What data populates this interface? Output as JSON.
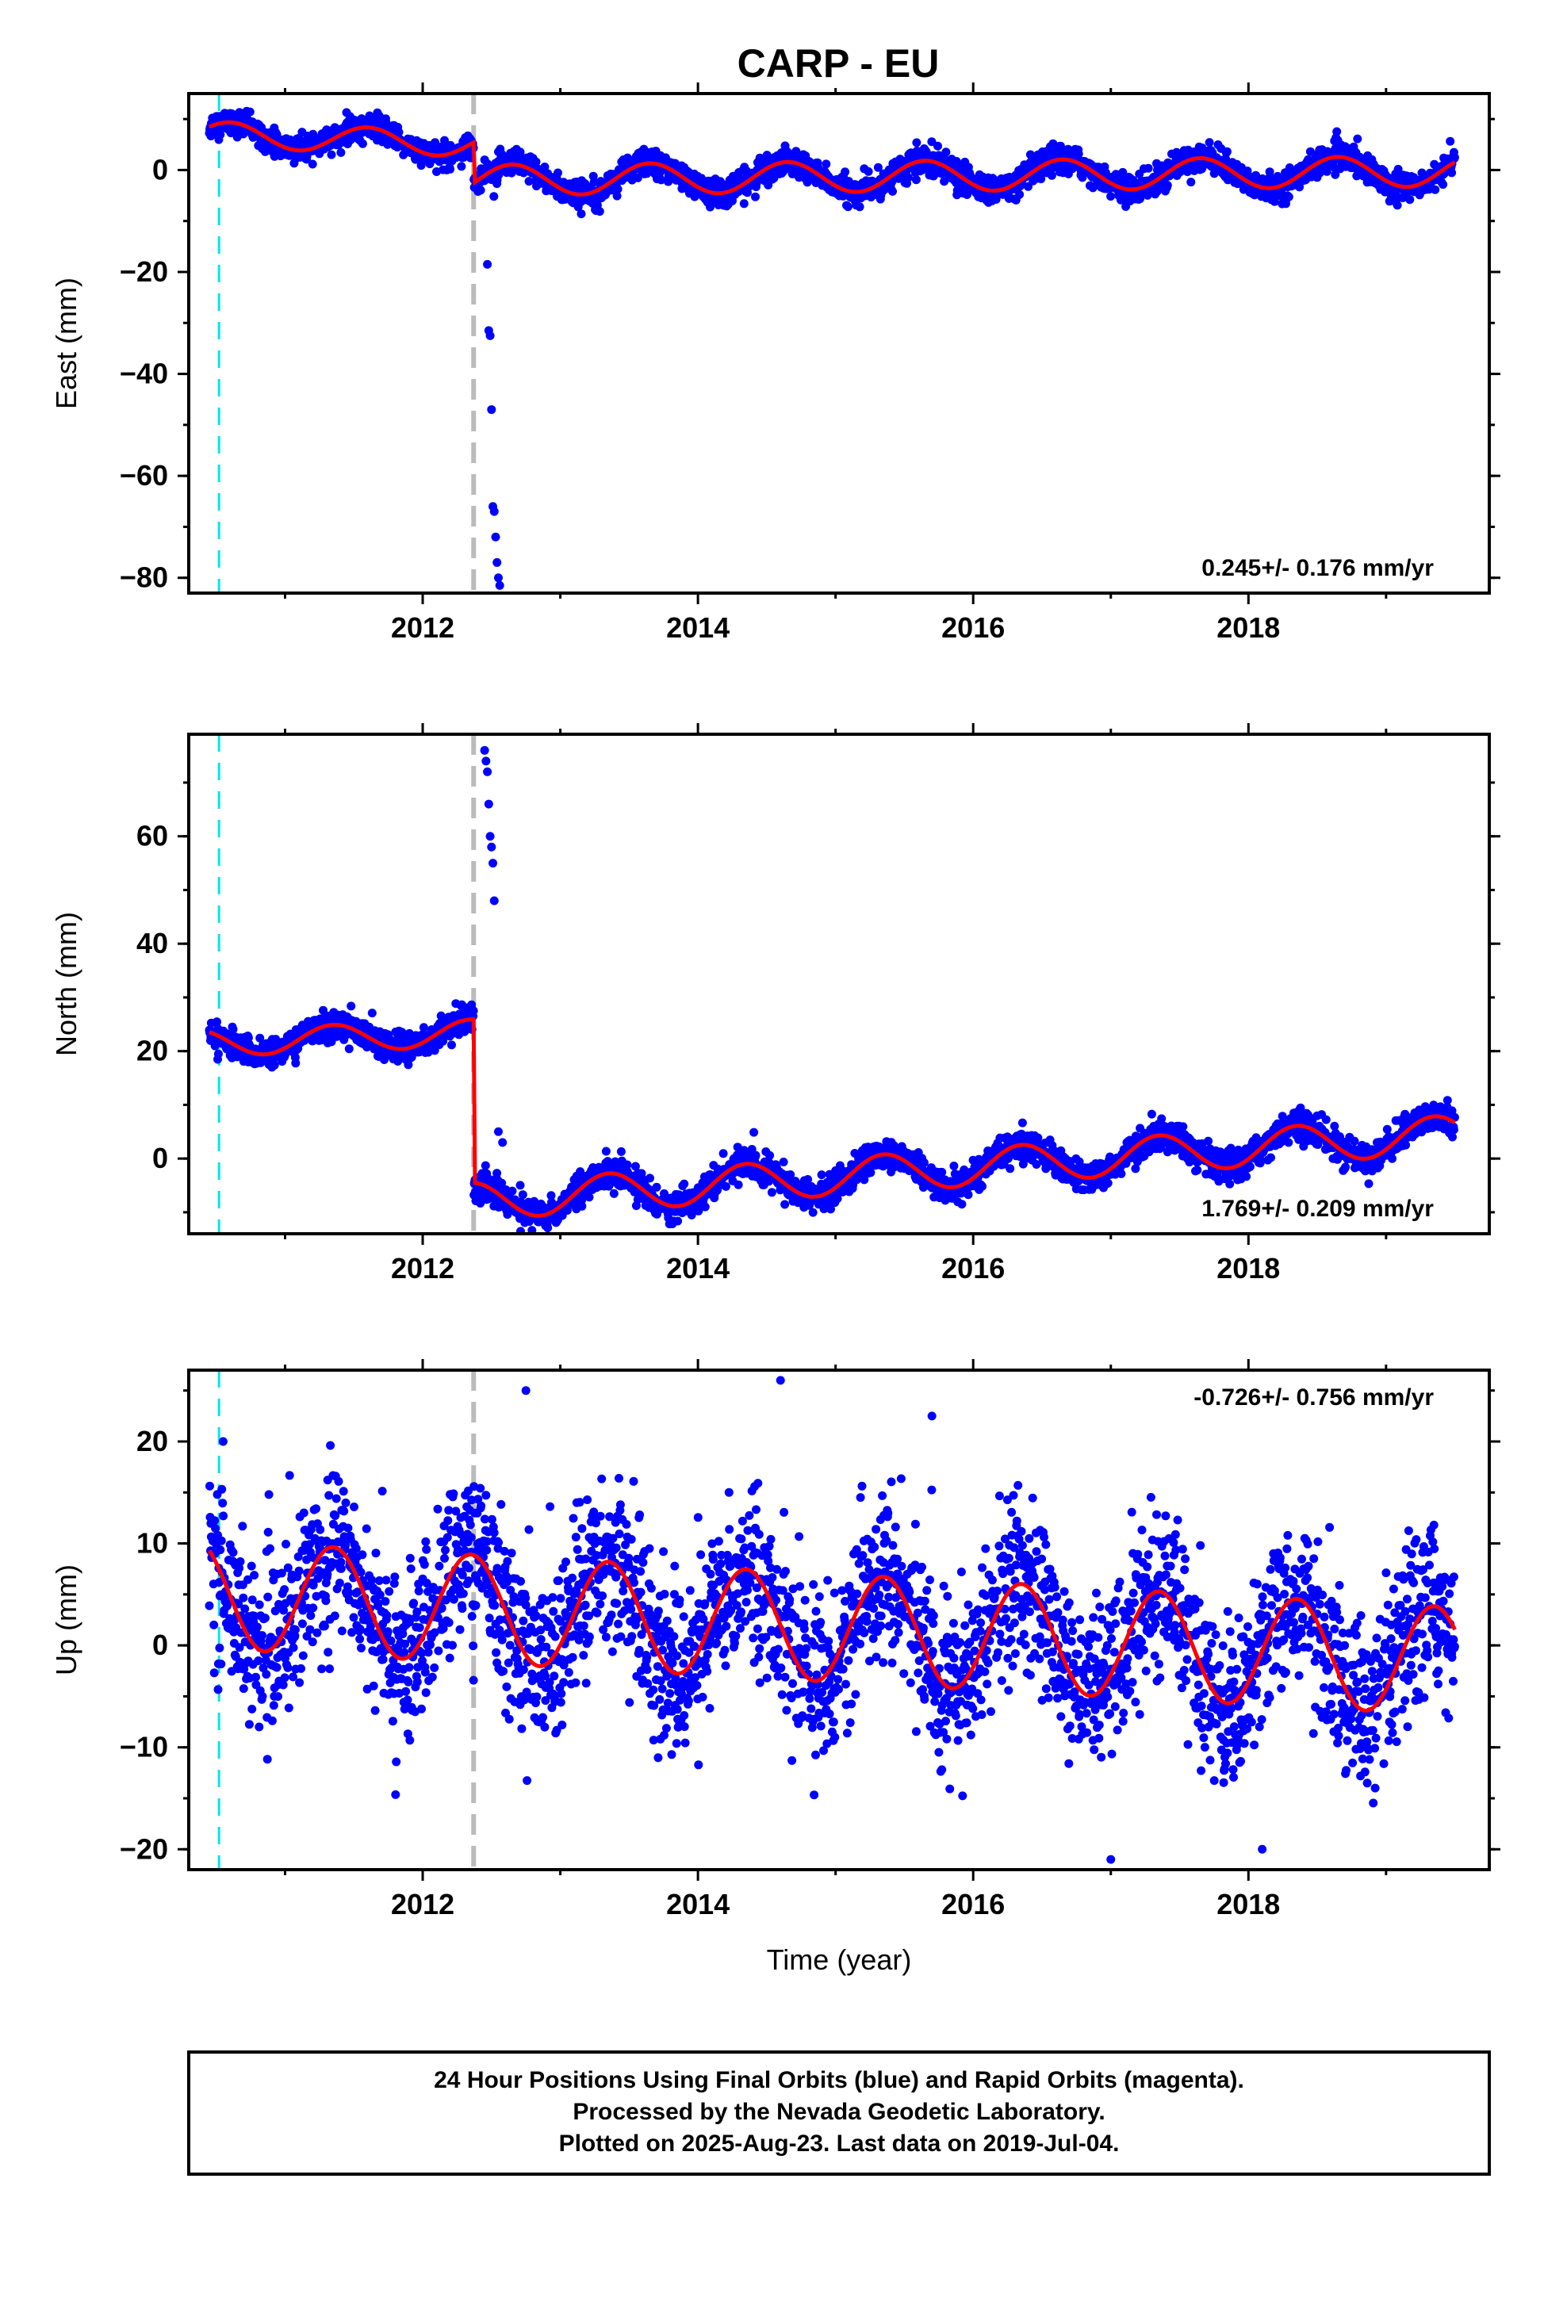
{
  "title": "CARP - EU",
  "chart_data": [
    {
      "type": "scatter",
      "panel": "east",
      "ylabel": "East (mm)",
      "xlabel": "",
      "xlim": [
        2010.3,
        2019.75
      ],
      "ylim": [
        -83,
        15
      ],
      "yticks": [
        0,
        -20,
        -40,
        -60,
        -80
      ],
      "xticks": [
        2012,
        2014,
        2016,
        2018
      ],
      "rate_label": "0.245+/- 0.176 mm/yr",
      "rate_position": "bottom-right",
      "vlines": [
        {
          "x": 2010.52,
          "color": "#00e5ee",
          "style": "dashed"
        },
        {
          "x": 2012.37,
          "color": "#bbbbbb",
          "style": "dashed"
        }
      ],
      "series": [
        {
          "points_color": "#0000ff",
          "model": "step",
          "start": 2010.45,
          "end": 2019.5,
          "segments": [
            {
              "from": 2010.45,
              "to": 2012.37,
              "offset": 7.0,
              "rate": -1.0,
              "amp": 2.5,
              "phase": 0.35,
              "noise": 1.2
            },
            {
              "from": 2012.37,
              "to": 2019.5,
              "offset": -2.0,
              "rate": 0.25,
              "amp": 3.0,
              "phase": 0.4,
              "noise": 1.3
            }
          ],
          "outliers": [
            [
              2012.45,
              2.0
            ],
            [
              2012.47,
              -18.5
            ],
            [
              2012.48,
              -31.5
            ],
            [
              2012.49,
              -32.5
            ],
            [
              2012.5,
              -47.0
            ],
            [
              2012.51,
              -66.0
            ],
            [
              2012.52,
              -67.0
            ],
            [
              2012.53,
              -72.0
            ],
            [
              2012.54,
              -77.0
            ],
            [
              2012.55,
              -80.0
            ],
            [
              2012.56,
              -81.5
            ]
          ]
        }
      ]
    },
    {
      "type": "scatter",
      "panel": "north",
      "ylabel": "North (mm)",
      "xlabel": "",
      "xlim": [
        2010.3,
        2019.75
      ],
      "ylim": [
        -14,
        79
      ],
      "yticks": [
        0,
        20,
        40,
        60
      ],
      "xticks": [
        2012,
        2014,
        2016,
        2018
      ],
      "rate_label": "1.769+/- 0.209 mm/yr",
      "rate_position": "bottom-right",
      "vlines": [
        {
          "x": 2010.52,
          "color": "#00e5ee",
          "style": "dashed"
        },
        {
          "x": 2012.37,
          "color": "#bbbbbb",
          "style": "dashed"
        }
      ],
      "series": [
        {
          "points_color": "#0000ff",
          "model": "step",
          "start": 2010.45,
          "end": 2019.5,
          "segments": [
            {
              "from": 2010.45,
              "to": 2012.37,
              "offset": 21.5,
              "rate": 1.0,
              "amp": 2.5,
              "phase": 0.1,
              "noise": 1.3
            },
            {
              "from": 2012.37,
              "to": 2019.5,
              "offset": -8.0,
              "rate": 1.77,
              "amp": 3.5,
              "phase": 0.1,
              "noise": 1.4
            }
          ],
          "outliers": [
            [
              2012.45,
              76.0
            ],
            [
              2012.46,
              74.0
            ],
            [
              2012.47,
              72.0
            ],
            [
              2012.48,
              66.0
            ],
            [
              2012.49,
              60.0
            ],
            [
              2012.5,
              58.0
            ],
            [
              2012.51,
              55.0
            ],
            [
              2012.52,
              48.0
            ],
            [
              2012.55,
              5.0
            ],
            [
              2012.58,
              3.0
            ]
          ]
        }
      ]
    },
    {
      "type": "scatter",
      "panel": "up",
      "ylabel": "Up (mm)",
      "xlabel": "Time (year)",
      "xlim": [
        2010.3,
        2019.75
      ],
      "ylim": [
        -22,
        27
      ],
      "yticks": [
        -20,
        -10,
        0,
        10,
        20
      ],
      "xticks": [
        2012,
        2014,
        2016,
        2018
      ],
      "rate_label": "-0.726+/- 0.756 mm/yr",
      "rate_position": "top-right",
      "vlines": [
        {
          "x": 2010.52,
          "color": "#00e5ee",
          "style": "dashed"
        },
        {
          "x": 2012.37,
          "color": "#bbbbbb",
          "style": "dashed"
        }
      ],
      "series": [
        {
          "points_color": "#0000ff",
          "model": "continuous",
          "start": 2010.45,
          "end": 2019.5,
          "segments": [
            {
              "from": 2010.45,
              "to": 2019.5,
              "offset": 5.0,
              "rate": -0.726,
              "amp": 5.3,
              "phase": 0.1,
              "noise": 4.0
            }
          ],
          "outliers": [
            [
              2010.55,
              20.0
            ],
            [
              2012.75,
              25.0
            ],
            [
              2014.6,
              26.0
            ],
            [
              2015.7,
              22.5
            ],
            [
              2017.0,
              -21.0
            ],
            [
              2018.1,
              -20.0
            ]
          ]
        }
      ]
    }
  ],
  "footer": {
    "line1": "24 Hour Positions Using Final Orbits (blue) and Rapid Orbits (magenta).",
    "line2": "Processed by the Nevada Geodetic Laboratory.",
    "line3": "Plotted on 2025-Aug-23. Last data on 2019-Jul-04."
  },
  "colors": {
    "points": "#0000ff",
    "model": "#ff0000",
    "cyan_line": "#00e5ee",
    "gray_line": "#bbbbbb",
    "frame": "#000000"
  }
}
